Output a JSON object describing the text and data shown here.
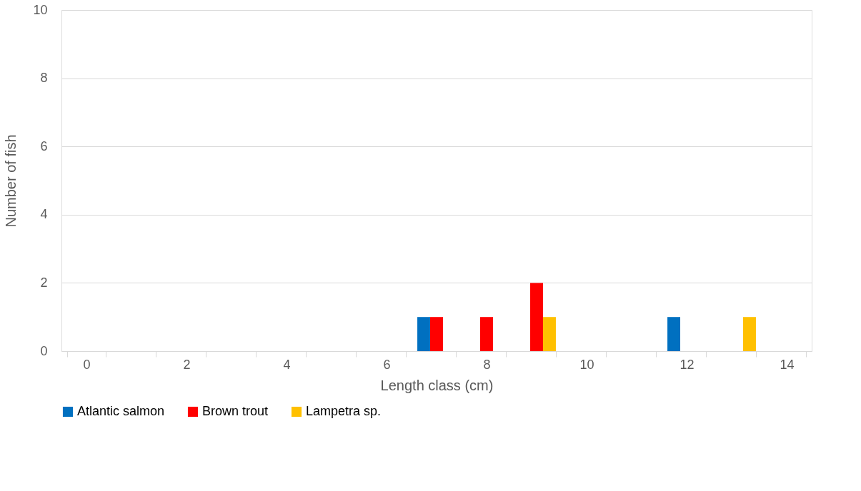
{
  "chart_data": {
    "type": "bar",
    "xlabel": "Length class (cm)",
    "ylabel": "Number of fish",
    "categories": [
      "0",
      null,
      "2",
      null,
      "4",
      null,
      "6",
      null,
      "8",
      null,
      "10",
      null,
      "12",
      null,
      "14"
    ],
    "series": [
      {
        "name": "Atlantic salmon",
        "color": "#0070c0",
        "values": [
          0,
          0,
          0,
          0,
          0,
          0,
          0,
          1,
          0,
          0,
          0,
          0,
          1,
          0,
          0
        ]
      },
      {
        "name": "Brown trout",
        "color": "#ff0000",
        "values": [
          0,
          0,
          0,
          0,
          0,
          0,
          0,
          1,
          1,
          2,
          0,
          0,
          0,
          0,
          0
        ]
      },
      {
        "name": "Lampetra sp.",
        "color": "#ffc000",
        "values": [
          0,
          0,
          0,
          0,
          0,
          0,
          0,
          0,
          0,
          1,
          0,
          0,
          0,
          1,
          0
        ]
      }
    ],
    "ylim": [
      0,
      10
    ],
    "yticks": [
      0,
      2,
      4,
      6,
      8,
      10
    ],
    "grid": "y",
    "legend": "bottom"
  }
}
